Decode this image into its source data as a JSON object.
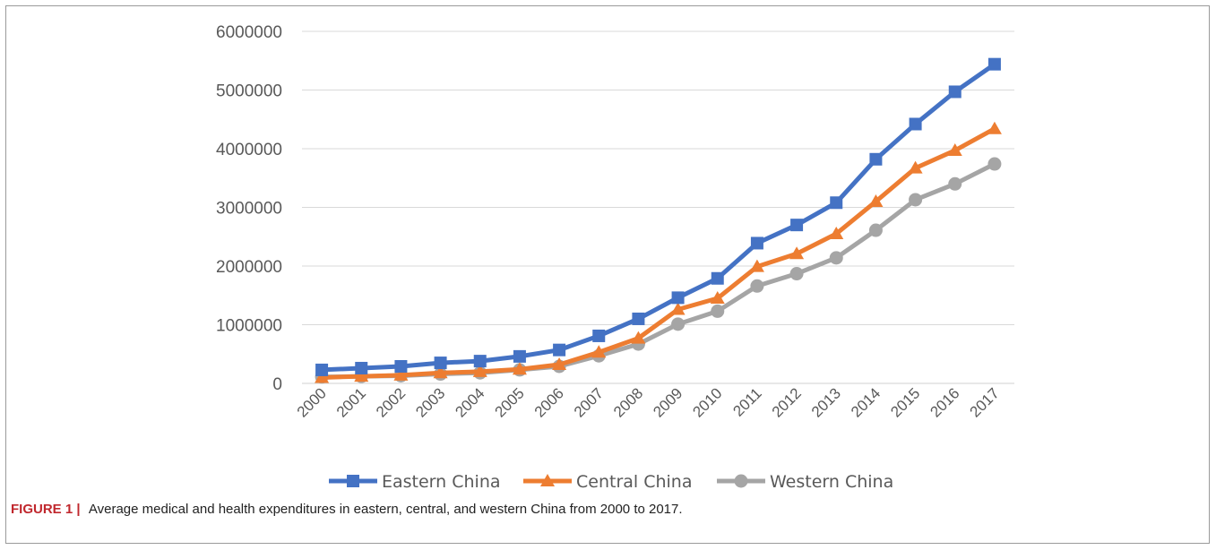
{
  "figure": {
    "label": "FIGURE 1 |",
    "caption": "Average medical and health expenditures in eastern, central, and western China from 2000 to 2017."
  },
  "chart_data": {
    "type": "line",
    "title": "",
    "xlabel": "",
    "ylabel": "",
    "x": [
      "2000",
      "2001",
      "2002",
      "2003",
      "2004",
      "2005",
      "2006",
      "2007",
      "2008",
      "2009",
      "2010",
      "2011",
      "2012",
      "2013",
      "2014",
      "2015",
      "2016",
      "2017"
    ],
    "ylim": [
      0,
      6000000
    ],
    "yticks": [
      0,
      1000000,
      2000000,
      3000000,
      4000000,
      5000000,
      6000000
    ],
    "ytick_labels": [
      "0",
      "1000000",
      "2000000",
      "3000000",
      "4000000",
      "5000000",
      "6000000"
    ],
    "grid": true,
    "legend": "bottom",
    "series": [
      {
        "name": "Eastern China",
        "color": "#4472c4",
        "marker": "square",
        "values": [
          230000,
          260000,
          290000,
          350000,
          380000,
          460000,
          570000,
          810000,
          1100000,
          1460000,
          1790000,
          2390000,
          2700000,
          3080000,
          3820000,
          4420000,
          4970000,
          5440000
        ]
      },
      {
        "name": "Central China",
        "color": "#ed7d31",
        "marker": "triangle",
        "values": [
          100000,
          120000,
          140000,
          180000,
          200000,
          240000,
          320000,
          530000,
          770000,
          1260000,
          1450000,
          1990000,
          2210000,
          2550000,
          3100000,
          3670000,
          3970000,
          4340000
        ]
      },
      {
        "name": "Western China",
        "color": "#a5a5a5",
        "marker": "circle",
        "values": [
          110000,
          120000,
          130000,
          160000,
          180000,
          230000,
          290000,
          470000,
          670000,
          1010000,
          1230000,
          1660000,
          1870000,
          2140000,
          2610000,
          3130000,
          3400000,
          3740000
        ]
      }
    ]
  }
}
